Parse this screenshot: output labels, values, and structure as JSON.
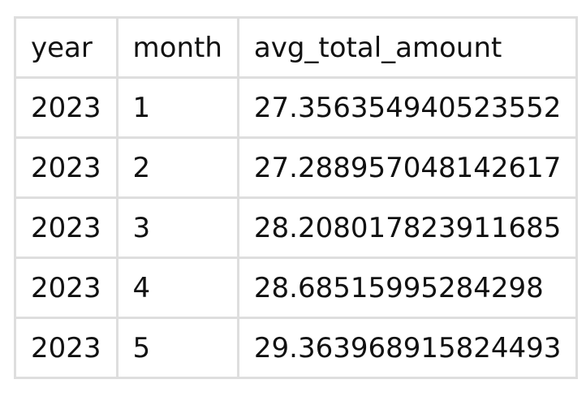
{
  "table": {
    "columns": [
      "year",
      "month",
      "avg_total_amount"
    ],
    "rows": [
      [
        "2023",
        "1",
        "27.356354940523552"
      ],
      [
        "2023",
        "2",
        "27.288957048142617"
      ],
      [
        "2023",
        "3",
        "28.208017823911685"
      ],
      [
        "2023",
        "4",
        "28.68515995284298"
      ],
      [
        "2023",
        "5",
        "29.363968915824493"
      ]
    ]
  },
  "colors": {
    "border": "#dedede",
    "text": "#111111",
    "background": "#ffffff"
  }
}
